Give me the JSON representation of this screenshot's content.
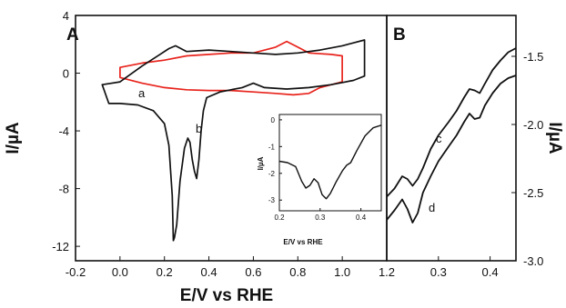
{
  "chart_data": [
    {
      "panel": "A",
      "type": "line",
      "xlabel": "E/V vs RHE",
      "ylabel": "I/µA",
      "xlim": [
        -0.2,
        1.2
      ],
      "ylim": [
        -13,
        4
      ],
      "xticks": [
        "-0.2",
        "0.0",
        "0.2",
        "0.4",
        "0.6",
        "0.8",
        "1.0",
        "1.2"
      ],
      "yticks": [
        "4",
        "0",
        "-4",
        "-8",
        "-12"
      ],
      "series": [
        {
          "label": "a",
          "color": "#e8231c",
          "closed": true,
          "points": [
            [
              0.0,
              -0.3
            ],
            [
              0.1,
              -0.7
            ],
            [
              0.2,
              -1.0
            ],
            [
              0.3,
              -1.15
            ],
            [
              0.4,
              -1.2
            ],
            [
              0.5,
              -1.2
            ],
            [
              0.6,
              -1.3
            ],
            [
              0.7,
              -1.4
            ],
            [
              0.78,
              -1.5
            ],
            [
              0.85,
              -1.4
            ],
            [
              0.9,
              -1.0
            ],
            [
              1.0,
              -0.6
            ],
            [
              1.0,
              0.0
            ],
            [
              1.0,
              1.2
            ],
            [
              0.95,
              1.3
            ],
            [
              0.85,
              1.4
            ],
            [
              0.8,
              1.8
            ],
            [
              0.75,
              2.2
            ],
            [
              0.7,
              1.8
            ],
            [
              0.6,
              1.4
            ],
            [
              0.5,
              1.4
            ],
            [
              0.4,
              1.3
            ],
            [
              0.3,
              1.2
            ],
            [
              0.2,
              0.9
            ],
            [
              0.1,
              0.7
            ],
            [
              0.0,
              0.4
            ],
            [
              0.0,
              -0.3
            ]
          ]
        },
        {
          "label": "b",
          "color": "#111111",
          "closed": true,
          "points": [
            [
              -0.05,
              -2.1
            ],
            [
              0.0,
              -2.1
            ],
            [
              0.08,
              -2.2
            ],
            [
              0.15,
              -2.6
            ],
            [
              0.2,
              -3.5
            ],
            [
              0.22,
              -5.0
            ],
            [
              0.235,
              -8.5
            ],
            [
              0.24,
              -11.6
            ],
            [
              0.245,
              -11.4
            ],
            [
              0.255,
              -10.5
            ],
            [
              0.27,
              -7.5
            ],
            [
              0.29,
              -5.2
            ],
            [
              0.305,
              -4.5
            ],
            [
              0.315,
              -4.8
            ],
            [
              0.325,
              -6.0
            ],
            [
              0.335,
              -6.8
            ],
            [
              0.345,
              -7.3
            ],
            [
              0.355,
              -6.0
            ],
            [
              0.365,
              -4.0
            ],
            [
              0.375,
              -2.6
            ],
            [
              0.39,
              -1.7
            ],
            [
              0.45,
              -1.3
            ],
            [
              0.55,
              -1.0
            ],
            [
              0.6,
              -0.7
            ],
            [
              0.65,
              -1.0
            ],
            [
              0.75,
              -1.1
            ],
            [
              0.85,
              -1.0
            ],
            [
              0.95,
              -0.8
            ],
            [
              1.05,
              -0.5
            ],
            [
              1.1,
              -0.2
            ],
            [
              1.1,
              0.8
            ],
            [
              1.1,
              2.3
            ],
            [
              1.05,
              2.1
            ],
            [
              1.0,
              1.9
            ],
            [
              0.9,
              1.6
            ],
            [
              0.8,
              1.4
            ],
            [
              0.7,
              1.3
            ],
            [
              0.6,
              1.4
            ],
            [
              0.5,
              1.5
            ],
            [
              0.4,
              1.6
            ],
            [
              0.3,
              1.5
            ],
            [
              0.25,
              1.9
            ],
            [
              0.22,
              1.7
            ],
            [
              0.18,
              1.3
            ],
            [
              0.1,
              0.5
            ],
            [
              0.0,
              -0.6
            ],
            [
              -0.08,
              -0.8
            ],
            [
              -0.05,
              -2.1
            ]
          ]
        }
      ]
    },
    {
      "panel": "A-inset",
      "type": "line",
      "xlabel": "E/V vs RHE",
      "ylabel": "I/µA",
      "xlim": [
        0.2,
        0.45
      ],
      "ylim": [
        -3.4,
        0.2
      ],
      "xticks": [
        "0.2",
        "0.3",
        "0.4"
      ],
      "yticks": [
        "0",
        "-1",
        "-2",
        "-3"
      ],
      "series": [
        {
          "label": "",
          "color": "#111111",
          "closed": false,
          "points": [
            [
              0.2,
              -1.55
            ],
            [
              0.22,
              -1.6
            ],
            [
              0.24,
              -1.75
            ],
            [
              0.255,
              -2.3
            ],
            [
              0.265,
              -2.55
            ],
            [
              0.275,
              -2.45
            ],
            [
              0.285,
              -2.2
            ],
            [
              0.295,
              -2.35
            ],
            [
              0.305,
              -2.8
            ],
            [
              0.315,
              -2.95
            ],
            [
              0.325,
              -2.75
            ],
            [
              0.34,
              -2.3
            ],
            [
              0.355,
              -1.9
            ],
            [
              0.365,
              -1.7
            ],
            [
              0.375,
              -1.6
            ],
            [
              0.39,
              -1.15
            ],
            [
              0.41,
              -0.6
            ],
            [
              0.43,
              -0.3
            ],
            [
              0.45,
              -0.2
            ]
          ]
        }
      ]
    },
    {
      "panel": "B",
      "type": "line",
      "xlabel": "",
      "ylabel": "I/µA",
      "xlim": [
        0.2,
        0.45
      ],
      "ylim": [
        -3.0,
        -1.2
      ],
      "yaxis_side": "right",
      "xticks": [
        "0.3",
        "0.4"
      ],
      "yticks": [
        "-1.5",
        "-2.0",
        "-2.5",
        "-3.0"
      ],
      "series": [
        {
          "label": "c",
          "color": "#111111",
          "closed": false,
          "points": [
            [
              0.2,
              -2.53
            ],
            [
              0.215,
              -2.47
            ],
            [
              0.23,
              -2.38
            ],
            [
              0.24,
              -2.4
            ],
            [
              0.25,
              -2.45
            ],
            [
              0.26,
              -2.4
            ],
            [
              0.27,
              -2.32
            ],
            [
              0.285,
              -2.18
            ],
            [
              0.3,
              -2.08
            ],
            [
              0.32,
              -1.98
            ],
            [
              0.335,
              -1.9
            ],
            [
              0.35,
              -1.8
            ],
            [
              0.36,
              -1.74
            ],
            [
              0.37,
              -1.75
            ],
            [
              0.38,
              -1.77
            ],
            [
              0.39,
              -1.7
            ],
            [
              0.405,
              -1.6
            ],
            [
              0.42,
              -1.53
            ],
            [
              0.435,
              -1.47
            ],
            [
              0.45,
              -1.44
            ]
          ]
        },
        {
          "label": "d",
          "color": "#111111",
          "closed": false,
          "points": [
            [
              0.2,
              -2.7
            ],
            [
              0.215,
              -2.63
            ],
            [
              0.23,
              -2.55
            ],
            [
              0.24,
              -2.62
            ],
            [
              0.25,
              -2.72
            ],
            [
              0.26,
              -2.65
            ],
            [
              0.27,
              -2.5
            ],
            [
              0.285,
              -2.38
            ],
            [
              0.3,
              -2.27
            ],
            [
              0.32,
              -2.16
            ],
            [
              0.335,
              -2.08
            ],
            [
              0.35,
              -1.98
            ],
            [
              0.36,
              -1.92
            ],
            [
              0.37,
              -1.96
            ],
            [
              0.38,
              -1.95
            ],
            [
              0.39,
              -1.86
            ],
            [
              0.405,
              -1.77
            ],
            [
              0.42,
              -1.7
            ],
            [
              0.435,
              -1.66
            ],
            [
              0.45,
              -1.64
            ]
          ]
        }
      ]
    }
  ],
  "figure": {
    "panel_a_letter": "A",
    "panel_b_letter": "B",
    "curve_tags": {
      "a": "a",
      "b": "b",
      "c": "c",
      "d": "d"
    }
  }
}
